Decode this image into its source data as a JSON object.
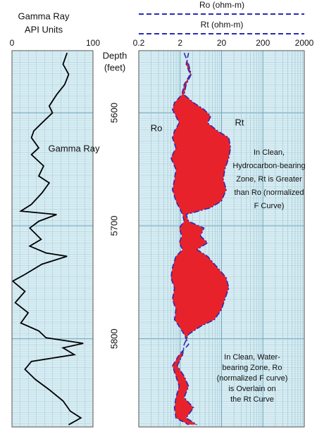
{
  "chart_data": [
    {
      "type": "line",
      "title": "Gamma Ray",
      "subtitle": "API Units",
      "xlim": [
        0,
        100
      ],
      "xticks": [
        0,
        100
      ],
      "ylim": [
        5545,
        5878
      ],
      "ylabel": [
        "Depth",
        "(feet)"
      ],
      "yticks": [
        5600,
        5700,
        5800
      ],
      "grid": true,
      "depth": [
        5547,
        5557,
        5566,
        5575,
        5584,
        5594,
        5600,
        5609,
        5616,
        5622,
        5631,
        5637,
        5647,
        5656,
        5662,
        5671,
        5681,
        5687,
        5690,
        5696,
        5702,
        5712,
        5718,
        5724,
        5727,
        5734,
        5743,
        5749,
        5758,
        5768,
        5777,
        5786,
        5793,
        5799,
        5804,
        5808,
        5814,
        5820,
        5827,
        5836,
        5845,
        5855,
        5864,
        5870,
        5876
      ],
      "series": [
        {
          "name": "Gamma Ray",
          "color": "#000000",
          "values": [
            68,
            63,
            70,
            65,
            55,
            46,
            50,
            37,
            27,
            24,
            33,
            24,
            39,
            33,
            46,
            37,
            24,
            11,
            55,
            33,
            22,
            36,
            22,
            42,
            68,
            37,
            16,
            1,
            16,
            4,
            20,
            11,
            33,
            42,
            88,
            63,
            77,
            24,
            16,
            29,
            46,
            63,
            72,
            85,
            70
          ]
        }
      ]
    },
    {
      "type": "line",
      "xscale": "log",
      "xlim": [
        0.2,
        2000
      ],
      "xticks": [
        0.2,
        2,
        20,
        200,
        2000
      ],
      "ylim": [
        5545,
        5878
      ],
      "grid": true,
      "fill_color": "#e8222b",
      "depth": [
        5547,
        5557,
        5566,
        5575,
        5584,
        5591,
        5597,
        5603,
        5609,
        5616,
        5622,
        5631,
        5640,
        5650,
        5659,
        5668,
        5678,
        5684,
        5690,
        5696,
        5702,
        5709,
        5715,
        5721,
        5727,
        5737,
        5746,
        5755,
        5765,
        5774,
        5783,
        5789,
        5796,
        5805,
        5814,
        5824,
        5833,
        5842,
        5852,
        5861,
        5870,
        5876
      ],
      "series": [
        {
          "name": "Ro (ohm-m)",
          "label": "Ro",
          "color": "#2a2ab8",
          "style": "dashed",
          "values": [
            3.2,
            2.8,
            3.5,
            2.5,
            2.2,
            1.46,
            1.3,
            1.58,
            1.9,
            1.46,
            1.3,
            1.58,
            1.2,
            1.58,
            1.46,
            1.3,
            1.58,
            1.9,
            2.3,
            2.5,
            1.9,
            2.2,
            1.9,
            2.3,
            1.58,
            1.3,
            1.2,
            1.46,
            1.3,
            1.58,
            1.46,
            1.9,
            2.5,
            3.2,
            1.9,
            1.3,
            1.58,
            1.9,
            1.58,
            1.46,
            1.58,
            3.2
          ]
        },
        {
          "name": "Rt (ohm-m)",
          "label": "Rt",
          "color": "#2a2ab8",
          "style": "dashdot",
          "values": [
            2.5,
            3.2,
            3.7,
            2.8,
            2.5,
            4.2,
            7.5,
            11,
            9.2,
            16,
            30,
            33,
            30,
            24,
            22,
            26,
            20,
            11,
            2.8,
            3.2,
            7.5,
            6.2,
            9.2,
            5.1,
            9.2,
            16,
            26,
            30,
            24,
            20,
            13.5,
            6.2,
            3.2,
            2.5,
            2.3,
            1.7,
            2.5,
            3.2,
            2.5,
            4.2,
            2.8,
            5.1
          ]
        }
      ],
      "annotations": [
        {
          "lines": [
            "In Clean,",
            "Hydrocarbon-bearing",
            "Zone, Rt is Greater",
            "than Ro (normalized",
            "F Curve)"
          ]
        },
        {
          "lines": [
            "In Clean, Water-",
            "bearing Zone, Ro",
            "(normalized F curve)",
            "is Overlain on",
            "the Rt Curve"
          ]
        }
      ]
    }
  ]
}
